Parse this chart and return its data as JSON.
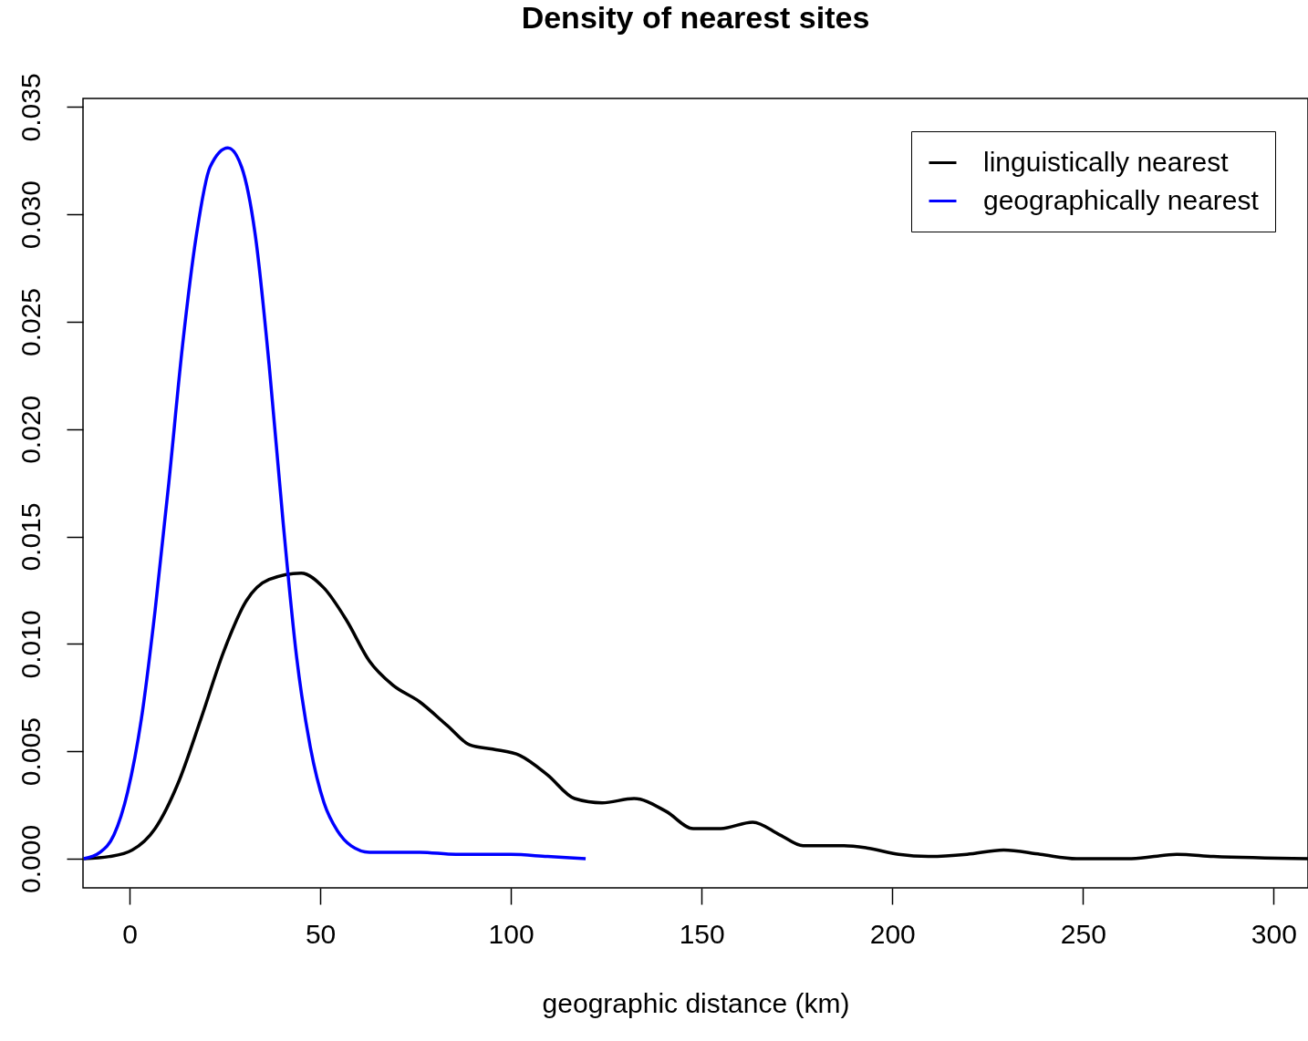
{
  "chart_data": {
    "type": "line",
    "title": "Density of nearest sites",
    "xlabel": "geographic distance (km)",
    "xlim": [
      -12.2,
      309
    ],
    "ylim": [
      -0.00136,
      0.0354
    ],
    "xticks": [
      0,
      50,
      100,
      150,
      200,
      250,
      300
    ],
    "yticks": [
      {
        "value": 0,
        "label": "0.000"
      },
      0.005,
      {
        "value": 0.01,
        "label": "0.010"
      },
      0.015,
      {
        "value": 0.02,
        "label": "0.020"
      },
      0.025,
      {
        "value": 0.03,
        "label": "0.030"
      },
      0.035
    ],
    "grid": false,
    "legend": "top right",
    "marker": "none",
    "line_style": "solid",
    "series": [
      {
        "name": "linguistically nearest",
        "color": "#000000",
        "x": [
          -12,
          -5.3,
          0.7,
          6.7,
          12.7,
          18.7,
          24.6,
          30.6,
          36.6,
          45.0,
          51.0,
          56.9,
          62.9,
          68.9,
          76.1,
          83.3,
          89.2,
          95.2,
          102.4,
          109.6,
          116.7,
          123.9,
          132.3,
          140.7,
          147.8,
          155.0,
          163.4,
          170.6,
          176.6,
          187.3,
          193.3,
          201.7,
          210.0,
          219.6,
          229.2,
          238.8,
          248.3,
          262.7,
          274.6,
          284.2,
          309
        ],
        "values": [
          0,
          0.0001,
          0.0004,
          0.0014,
          0.0035,
          0.0065,
          0.0096,
          0.012,
          0.013,
          0.0133,
          0.0126,
          0.0111,
          0.0092,
          0.0081,
          0.0073,
          0.0062,
          0.0053,
          0.0051,
          0.0048,
          0.0039,
          0.0028,
          0.0026,
          0.0028,
          0.0022,
          0.0014,
          0.0014,
          0.0017,
          0.0011,
          0.0006,
          0.0006,
          0.0005,
          0.0002,
          0.0001,
          0.0002,
          0.0004,
          0.0002,
          0,
          0,
          0.0002,
          0.0001,
          0
        ]
      },
      {
        "name": "geographically nearest",
        "color": "#0000ff",
        "x": [
          -12,
          -7.7,
          -4.1,
          -0.5,
          3.1,
          6.7,
          10.3,
          13.9,
          17.5,
          21.1,
          25.8,
          29.4,
          33.0,
          36.6,
          40.2,
          43.8,
          47.4,
          51.0,
          54.5,
          58.1,
          62.9,
          68.9,
          76.1,
          85.6,
          100,
          109.6,
          119.6
        ],
        "values": [
          0,
          0.0003,
          0.0011,
          0.0031,
          0.0065,
          0.01155,
          0.0175,
          0.0239,
          0.029,
          0.0322,
          0.0331,
          0.0322,
          0.029,
          0.023,
          0.0158,
          0.0094,
          0.0052,
          0.0026,
          0.0013,
          0.0006,
          0.0003,
          0.0003,
          0.0003,
          0.0002,
          0.0002,
          0.0001,
          0
        ]
      }
    ]
  }
}
